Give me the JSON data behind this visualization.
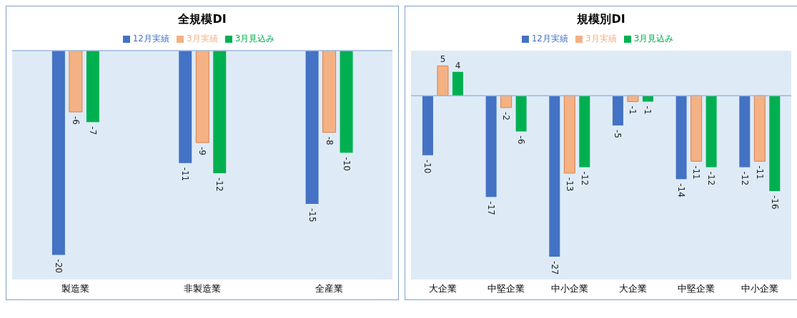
{
  "chart_data": [
    {
      "type": "bar",
      "title": "全規模DI",
      "categories": [
        "製造業",
        "非製造業",
        "全産業"
      ],
      "ref_lines": [
        {
          "axis": "y",
          "value": 0,
          "color": "#9db8e0"
        }
      ],
      "data_labels": true,
      "legend": "top",
      "series": [
        {
          "name": "12月実績",
          "color": "#4472c4",
          "values": [
            -20,
            -11,
            -15
          ]
        },
        {
          "name": "3月実績",
          "color": "#f4b183",
          "values": [
            -6,
            -9,
            -8
          ]
        },
        {
          "name": "3月見込み",
          "color": "#00b050",
          "values": [
            -7,
            -12,
            -10
          ]
        }
      ]
    },
    {
      "type": "bar",
      "title": "規模別DI",
      "categories": [
        "大企業",
        "中堅企業",
        "中小企業",
        "大企業",
        "中堅企業",
        "中小企業"
      ],
      "ref_lines": [
        {
          "axis": "y",
          "value": 0,
          "color": "#9db8e0"
        }
      ],
      "data_labels": true,
      "legend": "top",
      "series": [
        {
          "name": "12月実績",
          "color": "#4472c4",
          "values": [
            -10,
            -17,
            -27,
            -5,
            -14,
            -12
          ]
        },
        {
          "name": "3月実績",
          "color": "#f4b183",
          "values": [
            5,
            -2,
            -13,
            -1,
            -11,
            -11
          ]
        },
        {
          "name": "3月見込み",
          "color": "#00b050",
          "values": [
            4,
            -6,
            -12,
            -1,
            -12,
            -16
          ]
        }
      ]
    }
  ]
}
